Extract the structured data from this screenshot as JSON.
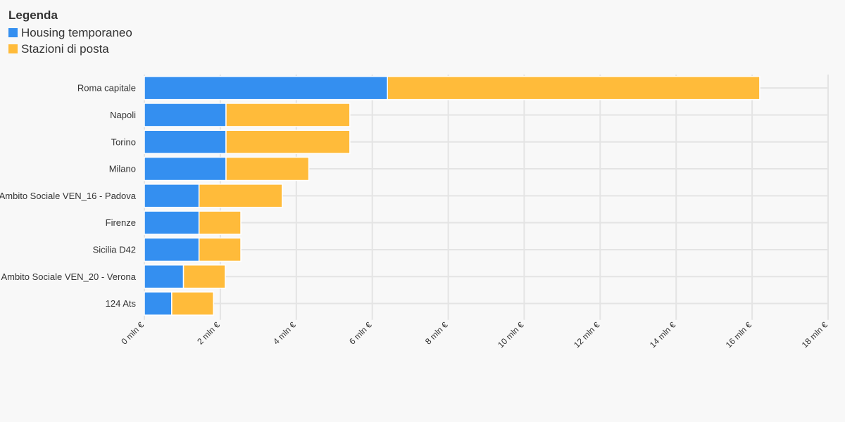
{
  "legend": {
    "title": "Legenda",
    "items": [
      {
        "label": "Housing temporaneo",
        "color": "#348ff0"
      },
      {
        "label": "Stazioni di posta",
        "color": "#ffbb3a"
      }
    ]
  },
  "chart_data": {
    "type": "bar",
    "orientation": "horizontal",
    "stacked": true,
    "categories": [
      "Roma capitale",
      "Napoli",
      "Torino",
      "Milano",
      "Ambito Sociale VEN_16 - Padova",
      "Firenze",
      "Sicilia D42",
      "Ambito Sociale VEN_20 - Verona",
      "124 Ats"
    ],
    "series": [
      {
        "name": "Housing temporaneo",
        "color": "#348ff0",
        "values": [
          6.4,
          2.15,
          2.15,
          2.15,
          1.44,
          1.44,
          1.44,
          1.03,
          0.72
        ]
      },
      {
        "name": "Stazioni di posta",
        "color": "#ffbb3a",
        "values": [
          9.8,
          3.26,
          3.26,
          2.18,
          2.19,
          1.1,
          1.1,
          1.1,
          1.1
        ]
      }
    ],
    "xlim": [
      0,
      18
    ],
    "xticks": [
      0,
      2,
      4,
      6,
      8,
      10,
      12,
      14,
      16,
      18
    ],
    "xtick_labels": [
      "0 mln €",
      "2 mln €",
      "4 mln €",
      "6 mln €",
      "8 mln €",
      "10 mln €",
      "12 mln €",
      "14 mln €",
      "16 mln €",
      "18 mln €"
    ],
    "grid": true,
    "legend_position": "top-left"
  }
}
